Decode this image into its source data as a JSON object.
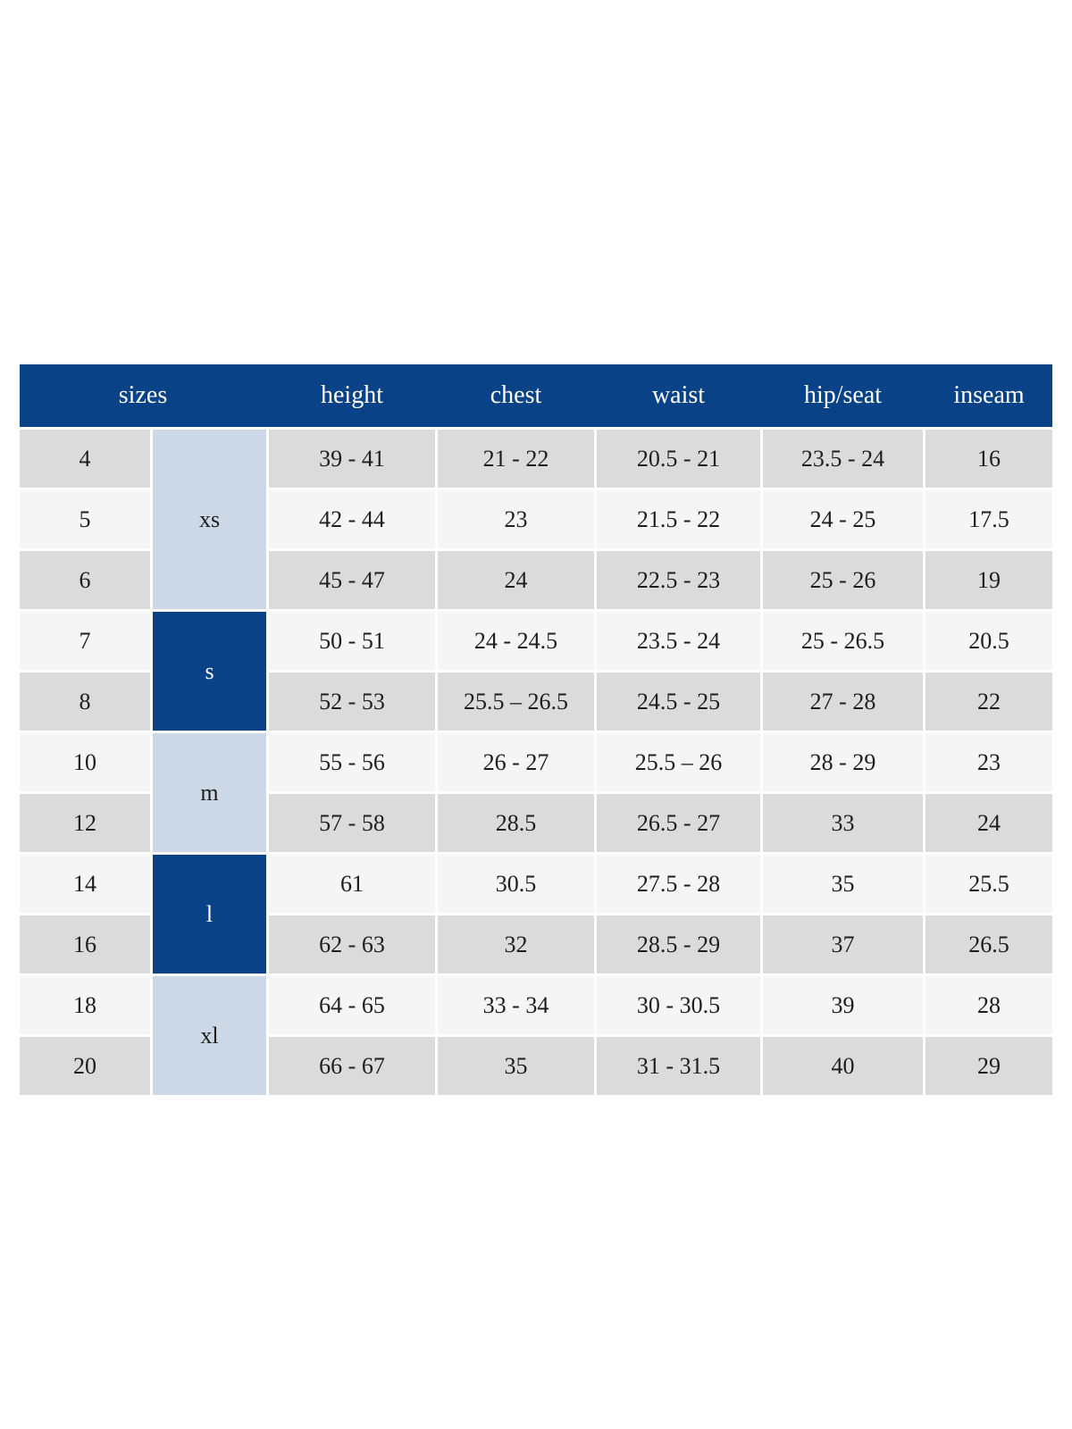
{
  "table": {
    "columns": [
      "sizes",
      "height",
      "chest",
      "waist",
      "hip/seat",
      "inseam"
    ],
    "size_groups": [
      {
        "label": "xs",
        "style": "light",
        "row_span": 3
      },
      {
        "label": "s",
        "style": "dark",
        "row_span": 2
      },
      {
        "label": "m",
        "style": "light",
        "row_span": 2
      },
      {
        "label": "l",
        "style": "dark",
        "row_span": 2
      },
      {
        "label": "xl",
        "style": "light",
        "row_span": 2
      }
    ],
    "rows": [
      {
        "size": "4",
        "height": "39 - 41",
        "chest": "21 - 22",
        "waist": "20.5 - 21",
        "hip_seat": "23.5 - 24",
        "inseam": "16"
      },
      {
        "size": "5",
        "height": "42 - 44",
        "chest": "23",
        "waist": "21.5 - 22",
        "hip_seat": "24 - 25",
        "inseam": "17.5"
      },
      {
        "size": "6",
        "height": "45 - 47",
        "chest": "24",
        "waist": "22.5 - 23",
        "hip_seat": "25 - 26",
        "inseam": "19"
      },
      {
        "size": "7",
        "height": "50 - 51",
        "chest": "24 - 24.5",
        "waist": "23.5 - 24",
        "hip_seat": "25 - 26.5",
        "inseam": "20.5"
      },
      {
        "size": "8",
        "height": "52 - 53",
        "chest": "25.5 – 26.5",
        "waist": "24.5 - 25",
        "hip_seat": "27 - 28",
        "inseam": "22"
      },
      {
        "size": "10",
        "height": "55 - 56",
        "chest": "26 - 27",
        "waist": "25.5 – 26",
        "hip_seat": "28 - 29",
        "inseam": "23"
      },
      {
        "size": "12",
        "height": "57 - 58",
        "chest": "28.5",
        "waist": "26.5 - 27",
        "hip_seat": "33",
        "inseam": "24"
      },
      {
        "size": "14",
        "height": "61",
        "chest": "30.5",
        "waist": "27.5 - 28",
        "hip_seat": "35",
        "inseam": "25.5"
      },
      {
        "size": "16",
        "height": "62 - 63",
        "chest": "32",
        "waist": "28.5 - 29",
        "hip_seat": "37",
        "inseam": "26.5"
      },
      {
        "size": "18",
        "height": "64 - 65",
        "chest": "33 - 34",
        "waist": "30 - 30.5",
        "hip_seat": "39",
        "inseam": "28"
      },
      {
        "size": "20",
        "height": "66 - 67",
        "chest": "35",
        "waist": "31 - 31.5",
        "hip_seat": "40",
        "inseam": "29"
      }
    ],
    "colors": {
      "header_bg": "#0a4287",
      "header_text": "#ffffff",
      "dark_cell_bg": "#0a4287",
      "light_cell_bg": "#ccd8e5",
      "row_gray": "#dbdbdb",
      "row_light": "#f5f5f5",
      "text": "#1e1e1e"
    }
  }
}
